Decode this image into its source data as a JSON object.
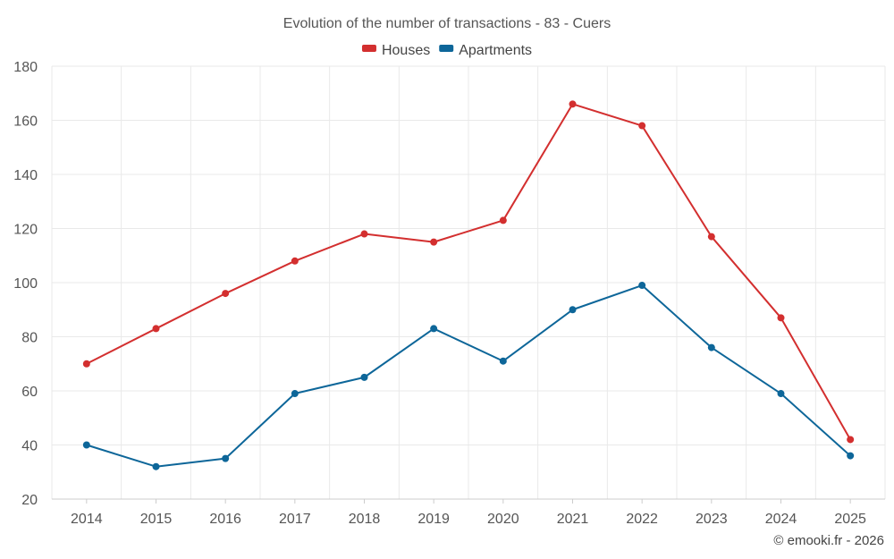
{
  "chart_data": {
    "type": "line",
    "title": "Evolution of the number of transactions - 83 - Cuers",
    "categories": [
      "2014",
      "2015",
      "2016",
      "2017",
      "2018",
      "2019",
      "2020",
      "2021",
      "2022",
      "2023",
      "2024",
      "2025"
    ],
    "series": [
      {
        "name": "Houses",
        "color": "#d32f2f",
        "values": [
          70,
          83,
          96,
          108,
          118,
          115,
          123,
          166,
          158,
          117,
          87,
          42
        ]
      },
      {
        "name": "Apartments",
        "color": "#0d6699",
        "values": [
          40,
          32,
          35,
          59,
          65,
          83,
          71,
          90,
          99,
          76,
          59,
          36
        ]
      }
    ],
    "ylim": [
      20,
      180
    ],
    "yticks": [
      20,
      40,
      60,
      80,
      100,
      120,
      140,
      160,
      180
    ],
    "xlabel": "",
    "ylabel": "",
    "grid": true,
    "legend": "top-center"
  },
  "credit": "© emooki.fr - 2026"
}
